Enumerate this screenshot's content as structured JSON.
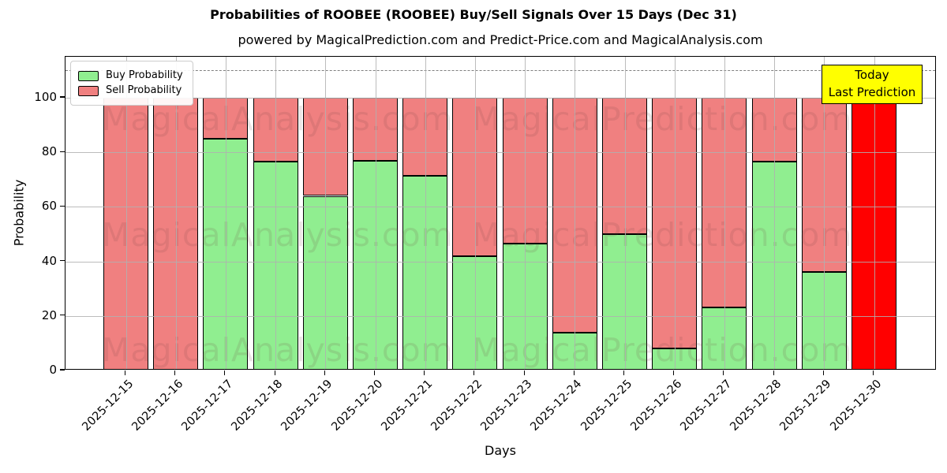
{
  "chart_data": {
    "type": "bar",
    "stacked": true,
    "title": "Probabilities of ROOBEE (ROOBEE) Buy/Sell Signals Over 15 Days (Dec 31)",
    "subtitle": "powered by MagicalPrediction.com and Predict-Price.com and MagicalAnalysis.com",
    "xlabel": "Days",
    "ylabel": "Probability",
    "ylim": [
      0,
      115
    ],
    "yticks": [
      0,
      20,
      40,
      60,
      80,
      100
    ],
    "dashed_guideline_y": 110,
    "grid": true,
    "legend_position": "upper left",
    "categories": [
      "2025-12-15",
      "2025-12-16",
      "2025-12-17",
      "2025-12-18",
      "2025-12-19",
      "2025-12-20",
      "2025-12-21",
      "2025-12-22",
      "2025-12-23",
      "2025-12-24",
      "2025-12-25",
      "2025-12-26",
      "2025-12-27",
      "2025-12-28",
      "2025-12-29",
      "2025-12-30"
    ],
    "series": [
      {
        "name": "Buy Probability",
        "color": "#90ee90",
        "values": [
          0,
          0,
          85,
          76.5,
          64,
          77,
          71.5,
          42,
          46.5,
          14,
          50,
          8,
          23,
          76.5,
          36,
          0
        ]
      },
      {
        "name": "Sell Probability",
        "color": "#f08080",
        "values": [
          100,
          100,
          15,
          23.5,
          36,
          23,
          28.5,
          58,
          53.5,
          86,
          50,
          92,
          77,
          23.5,
          64,
          100
        ]
      }
    ],
    "bar_edge_color": "#000000",
    "today_bar": {
      "category": "2025-12-30",
      "color": "#ff0000"
    },
    "annotation": {
      "line1": "Today",
      "line2": "Last Prediction",
      "bg_color": "#ffff00"
    },
    "watermarks": {
      "left": "MagicalAnalysis.com",
      "right": "MagicalPrediction.com"
    }
  }
}
